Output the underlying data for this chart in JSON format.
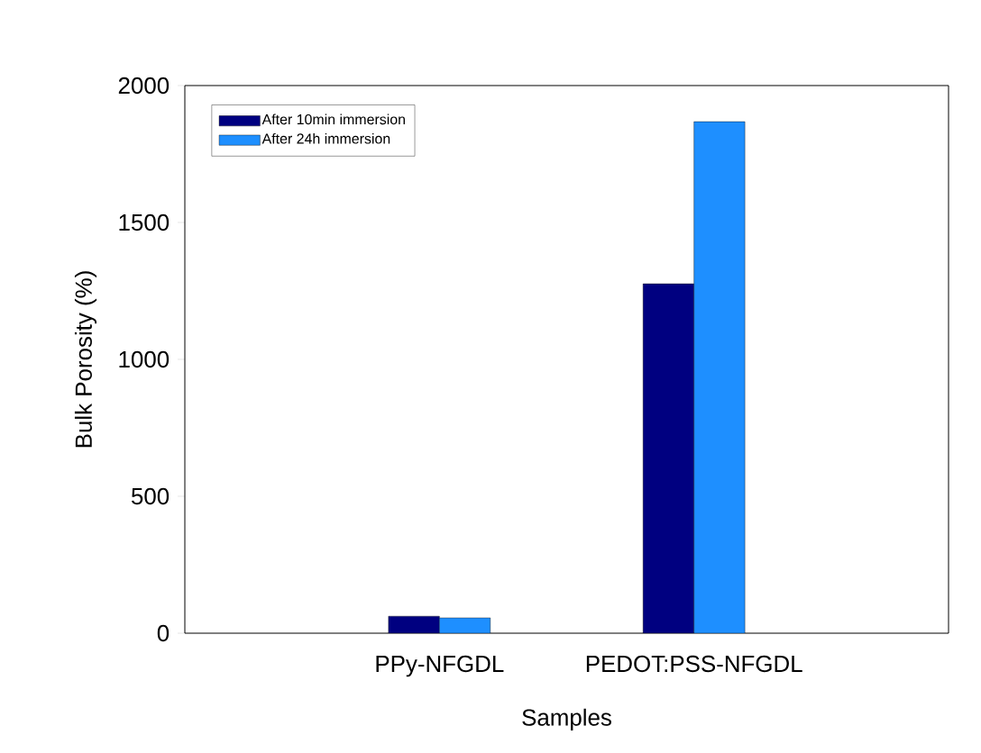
{
  "chart_data": {
    "type": "bar",
    "xlabel": "Samples",
    "ylabel": "Bulk Porosity (%)",
    "categories": [
      "PPy-NFGDL",
      "PEDOT:PSS-NFGDL"
    ],
    "series": [
      {
        "name": "After 10min immersion",
        "color": "#000080",
        "values": [
          62,
          1276
        ]
      },
      {
        "name": "After 24h immersion",
        "color": "#1e8fff",
        "values": [
          56,
          1868
        ]
      }
    ],
    "ylim": [
      0,
      2000
    ],
    "yticks": [
      0,
      500,
      1000,
      1500,
      2000
    ],
    "legend": "top left",
    "grid": false
  }
}
